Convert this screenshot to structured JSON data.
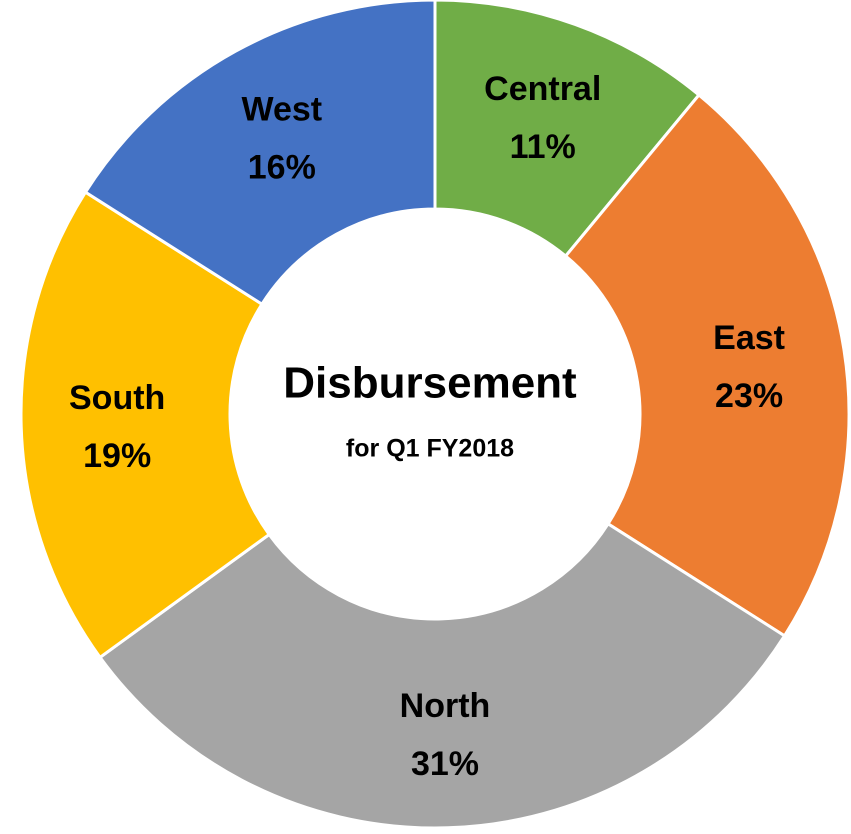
{
  "chart_data": {
    "type": "donut",
    "title": "Disbursement",
    "subtitle": "for Q1 FY2018",
    "categories": [
      "Central",
      "East",
      "North",
      "South",
      "West"
    ],
    "values": [
      11,
      23,
      31,
      19,
      16
    ],
    "value_labels": [
      "11%",
      "23%",
      "31%",
      "19%",
      "16%"
    ],
    "colors": [
      "#70ad47",
      "#ed7d31",
      "#a5a5a5",
      "#ffc000",
      "#4472c4"
    ]
  }
}
